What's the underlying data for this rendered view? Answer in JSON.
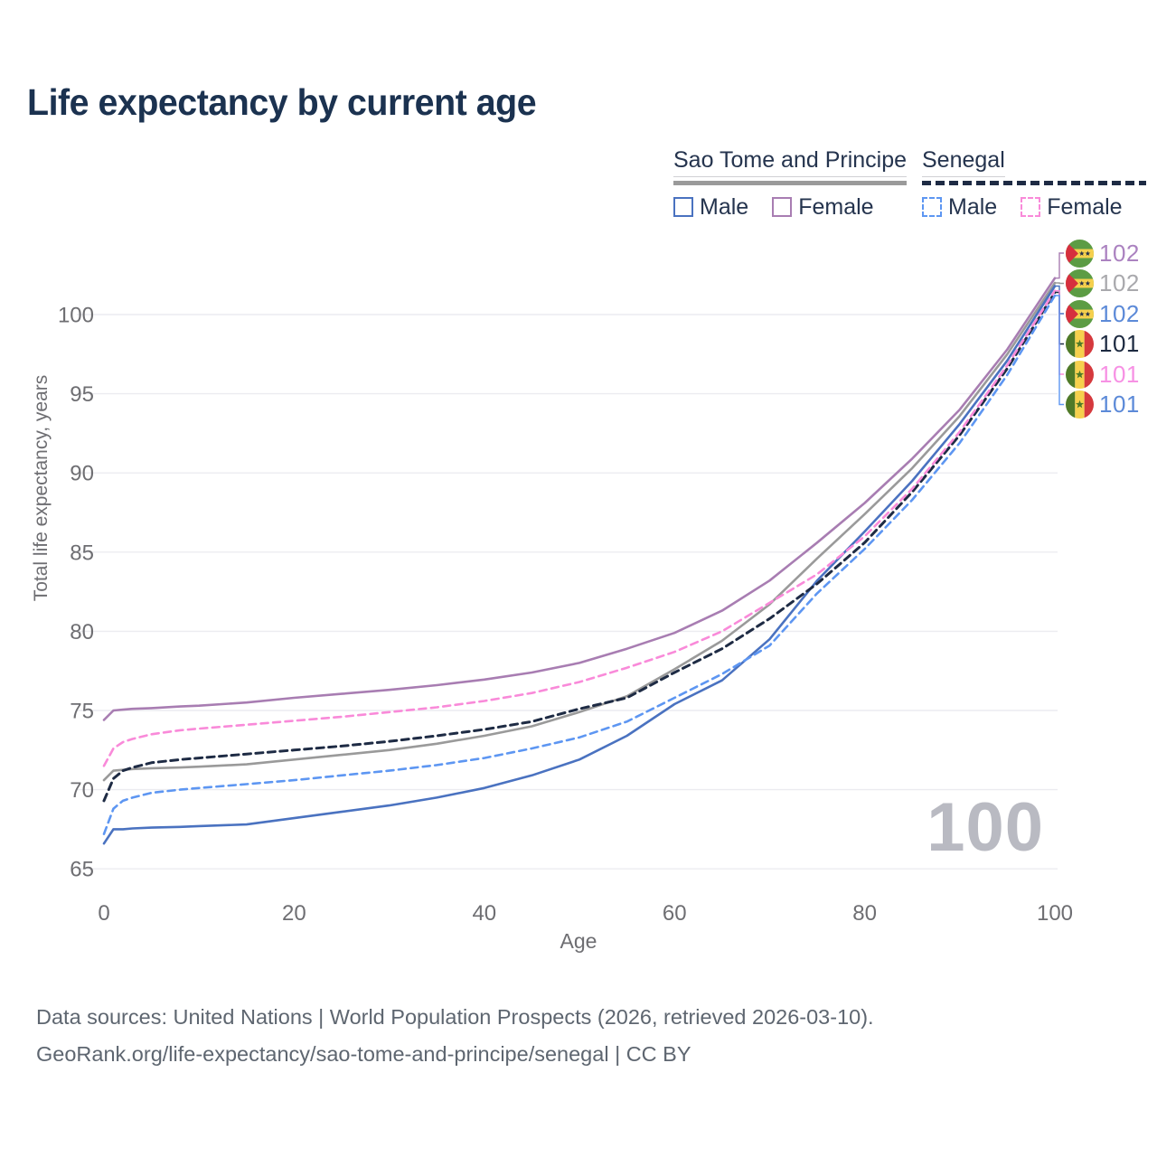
{
  "title": "Life expectancy by current age",
  "watermark": "100",
  "legend": {
    "groups": [
      {
        "label": "Sao Tome and Principe",
        "line_style": "solid",
        "line_color": "#9a9a9a"
      },
      {
        "label": "Senegal",
        "line_style": "dashed",
        "line_color": "#1e2b44"
      }
    ],
    "items": [
      {
        "label": "Male",
        "swatch_style": "solid",
        "swatch_color": "#4a72c0"
      },
      {
        "label": "Female",
        "swatch_style": "solid",
        "swatch_color": "#a87db2"
      },
      {
        "label": "Male",
        "swatch_style": "dashed",
        "swatch_color": "#5d96f2"
      },
      {
        "label": "Female",
        "swatch_style": "dashed",
        "swatch_color": "#f98ad9"
      }
    ]
  },
  "end_labels": [
    {
      "value": "102",
      "color": "#ab82c0",
      "flag": "sao-tome-and-principe",
      "series_ref": 1
    },
    {
      "value": "102",
      "color": "#a9a9ad",
      "flag": "sao-tome-and-principe",
      "series_ref": 0
    },
    {
      "value": "102",
      "color": "#5c8ad8",
      "flag": "sao-tome-and-principe",
      "series_ref": 2
    },
    {
      "value": "101",
      "color": "#1c2940",
      "flag": "senegal",
      "series_ref": 3
    },
    {
      "value": "101",
      "color": "#f791e4",
      "flag": "senegal",
      "series_ref": 4
    },
    {
      "value": "101",
      "color": "#5c8ad8",
      "flag": "senegal",
      "series_ref": 5
    }
  ],
  "flag_colors": {
    "sao_tome": {
      "green": "#5c9c44",
      "yellow": "#f6d04d",
      "red": "#d62f3e",
      "star": "#263149"
    },
    "senegal": {
      "green": "#4f7a28",
      "yellow": "#f6d04d",
      "red": "#d5393d",
      "star": "#4f7a28"
    }
  },
  "footer": {
    "line1": "Data sources: United Nations | World Population Prospects (2026, retrieved 2026-03-10).",
    "line2": "GeoRank.org/life-expectancy/sao-tome-and-principe/senegal | CC BY"
  },
  "chart_data": {
    "type": "line",
    "title": "Life expectancy by current age",
    "xlabel": "Age",
    "ylabel": "Total life expectancy, years",
    "xlim": [
      0,
      100
    ],
    "ylim": [
      63.5,
      103
    ],
    "xticks": [
      0,
      20,
      40,
      60,
      80,
      100
    ],
    "yticks": [
      65,
      70,
      75,
      80,
      85,
      90,
      95,
      100
    ],
    "grid": "horizontal",
    "legend_position": "top-right",
    "x": [
      0,
      1,
      2,
      3,
      5,
      8,
      10,
      15,
      20,
      25,
      30,
      35,
      40,
      45,
      50,
      55,
      60,
      65,
      70,
      75,
      80,
      85,
      90,
      95,
      100
    ],
    "series": [
      {
        "name": "Sao Tome and Principe — Total",
        "style": "solid",
        "color": "#9a9a9a",
        "width": 2.6,
        "end_value": 102,
        "values": [
          70.6,
          71.2,
          71.25,
          71.3,
          71.35,
          71.4,
          71.45,
          71.6,
          71.9,
          72.2,
          72.5,
          72.9,
          73.4,
          74.0,
          74.9,
          75.9,
          77.6,
          79.4,
          81.7,
          84.6,
          87.4,
          90.3,
          93.6,
          97.5,
          102.0
        ]
      },
      {
        "name": "Sao Tome and Principe — Female",
        "style": "solid",
        "color": "#a87db2",
        "width": 2.6,
        "end_value": 102,
        "values": [
          74.4,
          75.0,
          75.05,
          75.1,
          75.15,
          75.25,
          75.3,
          75.5,
          75.8,
          76.05,
          76.3,
          76.6,
          76.95,
          77.4,
          78.0,
          78.9,
          79.9,
          81.3,
          83.2,
          85.6,
          88.1,
          90.9,
          94.0,
          97.8,
          102.3
        ]
      },
      {
        "name": "Sao Tome and Principe — Male",
        "style": "solid",
        "color": "#4a72c0",
        "width": 2.6,
        "end_value": 102,
        "values": [
          66.6,
          67.5,
          67.5,
          67.55,
          67.6,
          67.65,
          67.7,
          67.8,
          68.2,
          68.6,
          69.0,
          69.5,
          70.1,
          70.9,
          71.9,
          73.4,
          75.4,
          76.9,
          79.5,
          83.2,
          86.3,
          89.5,
          93.1,
          97.1,
          101.8
        ]
      },
      {
        "name": "Senegal — Total",
        "style": "dashed",
        "color": "#1e2b44",
        "width": 3.0,
        "end_value": 101,
        "values": [
          69.3,
          70.7,
          71.2,
          71.4,
          71.7,
          71.9,
          72.0,
          72.25,
          72.5,
          72.75,
          73.05,
          73.4,
          73.8,
          74.3,
          75.1,
          75.8,
          77.4,
          78.9,
          80.8,
          83.0,
          85.6,
          88.8,
          92.4,
          96.6,
          101.4
        ]
      },
      {
        "name": "Senegal — Female",
        "style": "dashed",
        "color": "#f98ad9",
        "width": 2.6,
        "end_value": 101,
        "values": [
          71.5,
          72.6,
          73.0,
          73.2,
          73.5,
          73.75,
          73.85,
          74.1,
          74.35,
          74.6,
          74.9,
          75.2,
          75.6,
          76.1,
          76.8,
          77.7,
          78.7,
          80.0,
          81.8,
          83.6,
          86.0,
          89.0,
          92.6,
          96.8,
          101.5
        ]
      },
      {
        "name": "Senegal — Male",
        "style": "dashed",
        "color": "#5d96f2",
        "width": 2.6,
        "end_value": 101,
        "values": [
          67.2,
          68.8,
          69.3,
          69.5,
          69.8,
          70.0,
          70.1,
          70.35,
          70.6,
          70.9,
          71.2,
          71.55,
          72.0,
          72.6,
          73.3,
          74.3,
          75.8,
          77.3,
          79.1,
          82.4,
          85.2,
          88.3,
          91.9,
          96.2,
          101.2
        ]
      }
    ]
  }
}
